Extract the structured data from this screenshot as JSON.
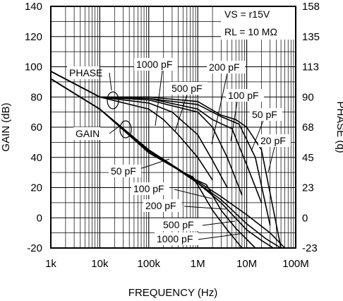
{
  "chart_data": {
    "type": "line",
    "xlabel": "FREQUENCY (Hz)",
    "ylabel": "GAIN (dB)",
    "y2label": "PHASE (q)",
    "xscale": "log",
    "xlim": [
      1000,
      100000000
    ],
    "ylim": [
      -20,
      140
    ],
    "x_ticks": [
      1000,
      10000,
      100000,
      1000000,
      10000000,
      100000000
    ],
    "x_tick_labels": [
      "1k",
      "10k",
      "100k",
      "1M",
      "10M",
      "100M"
    ],
    "y_ticks": [
      -20,
      0,
      20,
      40,
      60,
      80,
      100,
      120,
      140
    ],
    "y_tick_labels": [
      "-20",
      "0",
      "20",
      "40",
      "60",
      "80",
      "100",
      "120",
      "140"
    ],
    "y2_tick_labels": [
      "-23",
      "0",
      "23",
      "45",
      "68",
      "90",
      "113",
      "135",
      "158"
    ],
    "grid": true,
    "conditions": [
      "VS = r15V",
      "RL = 10 MΩ"
    ],
    "series": [
      {
        "name": "1000 pF",
        "group": "phase",
        "x": [
          1000,
          10000,
          100000,
          200000,
          400000,
          1000000,
          2000000
        ],
        "y": [
          97,
          80,
          72,
          65,
          55,
          40,
          25
        ]
      },
      {
        "name": "500 pF",
        "group": "phase",
        "x": [
          1000,
          10000,
          100000,
          300000,
          1000000,
          2000000,
          4000000
        ],
        "y": [
          97,
          80,
          76,
          70,
          55,
          38,
          20
        ]
      },
      {
        "name": "200 pF",
        "group": "phase",
        "x": [
          1000,
          10000,
          100000,
          1000000,
          2000000,
          4000000,
          8000000
        ],
        "y": [
          97,
          80,
          78,
          70,
          60,
          40,
          15
        ]
      },
      {
        "name": "100 pF",
        "group": "phase",
        "x": [
          1000,
          10000,
          100000,
          1000000,
          2000000,
          5000000,
          10000000,
          20000000
        ],
        "y": [
          97,
          80,
          79,
          72,
          65,
          59,
          35,
          10
        ]
      },
      {
        "name": "50 pF",
        "group": "phase",
        "x": [
          1000,
          10000,
          100000,
          1000000,
          3000000,
          7000000,
          15000000,
          30000000
        ],
        "y": [
          97,
          80,
          79,
          75,
          67,
          62,
          40,
          -5
        ]
      },
      {
        "name": "20 pF",
        "group": "phase",
        "x": [
          1000,
          10000,
          100000,
          1000000,
          3000000,
          6000000,
          10000000,
          20000000,
          50000000
        ],
        "y": [
          97,
          80,
          80,
          77,
          68,
          65,
          60,
          45,
          -20
        ]
      },
      {
        "name": "50 pF",
        "group": "gain",
        "x": [
          1000,
          10000,
          100000,
          1000000,
          3000000,
          10000000,
          30000000,
          60000000
        ],
        "y": [
          92,
          72,
          45,
          24,
          14,
          2,
          -10,
          -20
        ]
      },
      {
        "name": "100 pF",
        "group": "gain",
        "x": [
          1000,
          10000,
          100000,
          1000000,
          3000000,
          10000000,
          25000000,
          50000000
        ],
        "y": [
          92,
          72,
          45,
          23,
          12,
          -4,
          -14,
          -20
        ]
      },
      {
        "name": "200 pF",
        "group": "gain",
        "x": [
          1000,
          10000,
          100000,
          1000000,
          3000000,
          10000000,
          20000000,
          35000000
        ],
        "y": [
          92,
          72,
          45,
          23,
          10,
          -8,
          -15,
          -20
        ]
      },
      {
        "name": "500 pF",
        "group": "gain",
        "x": [
          1000,
          10000,
          100000,
          800000,
          1500000,
          3000000,
          6000000,
          15000000
        ],
        "y": [
          92,
          72,
          44,
          26,
          22,
          5,
          -7,
          -20
        ]
      },
      {
        "name": "1000 pF",
        "group": "gain",
        "x": [
          1000,
          10000,
          100000,
          500000,
          800000,
          2000000,
          4000000,
          8000000
        ],
        "y": [
          92,
          72,
          43,
          30,
          27,
          5,
          -8,
          -20
        ]
      }
    ],
    "annotations": [
      "PHASE",
      "GAIN",
      "1000 pF",
      "500 pF",
      "200 pF",
      "100 pF",
      "50 pF",
      "20 pF",
      "50 pF",
      "100 pF",
      "200 pF",
      "500 pF",
      "1000 pF"
    ]
  }
}
